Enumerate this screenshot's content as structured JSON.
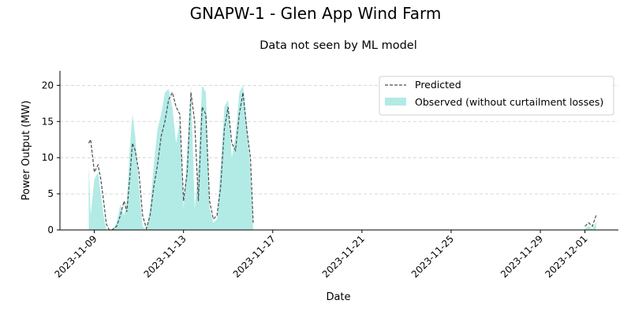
{
  "colors": {
    "observed_fill": "#b2ebe6",
    "predicted_line": "#4d4d4d",
    "grid": "#cccccc",
    "axis": "#000000"
  },
  "chart_data": {
    "type": "area",
    "title": "GNAPW-1 - Glen App Wind Farm",
    "subtitle": "Data not seen by ML model",
    "xlabel": "Date",
    "ylabel": "Power Output (MW)",
    "xlim": [
      "2023-11-07T11:00",
      "2023-12-02T12:00"
    ],
    "ylim": [
      0,
      22
    ],
    "x_ticks": [
      "2023-11-09",
      "2023-11-13",
      "2023-11-17",
      "2023-11-21",
      "2023-11-25",
      "2023-11-29",
      "2023-12-01"
    ],
    "y_ticks": [
      0,
      5,
      10,
      15,
      20
    ],
    "grid": "horizontal-dashed",
    "legend": {
      "placement": "top-right"
    },
    "series": [
      {
        "name": "Predicted",
        "style": "dashed-line",
        "segments": [
          {
            "x": [
              "2023-11-08T18:00",
              "2023-11-08T20:00",
              "2023-11-09T00:00",
              "2023-11-09T04:00",
              "2023-11-09T07:00",
              "2023-11-09T10:00",
              "2023-11-09T13:00",
              "2023-11-09T16:00",
              "2023-11-09T19:00",
              "2023-11-10T00:00",
              "2023-11-10T04:00",
              "2023-11-10T08:00",
              "2023-11-10T11:00",
              "2023-11-10T14:00",
              "2023-11-10T17:00",
              "2023-11-10T20:00",
              "2023-11-11T00:00",
              "2023-11-11T04:00",
              "2023-11-11T08:00",
              "2023-11-11T12:00",
              "2023-11-11T16:00",
              "2023-11-11T20:00",
              "2023-11-12T00:00",
              "2023-11-12T04:00",
              "2023-11-12T08:00",
              "2023-11-12T12:00",
              "2023-11-12T16:00",
              "2023-11-12T20:00",
              "2023-11-13T00:00",
              "2023-11-13T04:00",
              "2023-11-13T08:00",
              "2023-11-13T12:00",
              "2023-11-13T16:00",
              "2023-11-13T20:00",
              "2023-11-14T00:00",
              "2023-11-14T04:00",
              "2023-11-14T08:00",
              "2023-11-14T12:00",
              "2023-11-14T16:00",
              "2023-11-14T20:00",
              "2023-11-15T00:00",
              "2023-11-15T04:00",
              "2023-11-15T08:00",
              "2023-11-15T12:00",
              "2023-11-15T16:00",
              "2023-11-15T20:00",
              "2023-11-16T00:00",
              "2023-11-16T03:00"
            ],
            "y": [
              12,
              12.5,
              8,
              9,
              7,
              4,
              0.8,
              0,
              0,
              0.5,
              2,
              4,
              2.5,
              7,
              12,
              11,
              8,
              2,
              0.2,
              2,
              6,
              9,
              13,
              15,
              18,
              19,
              17,
              16,
              4,
              8,
              19,
              15,
              4,
              17,
              16,
              4,
              1.5,
              2,
              6,
              14,
              17,
              12,
              11,
              16,
              19,
              14,
              10,
              1
            ]
          },
          {
            "x": [
              "2023-12-01T00:00",
              "2023-12-01T04:00",
              "2023-12-01T08:00",
              "2023-12-01T12:00"
            ],
            "y": [
              0.5,
              1,
              0.5,
              2
            ]
          }
        ]
      },
      {
        "name": "Observed (without curtailment losses)",
        "style": "filled-area",
        "segments": [
          {
            "x": [
              "2023-11-08T18:00",
              "2023-11-08T20:00",
              "2023-11-09T00:00",
              "2023-11-09T04:00",
              "2023-11-09T07:00",
              "2023-11-09T10:00",
              "2023-11-09T13:00",
              "2023-11-09T16:00",
              "2023-11-09T19:00",
              "2023-11-10T00:00",
              "2023-11-10T04:00",
              "2023-11-10T08:00",
              "2023-11-10T11:00",
              "2023-11-10T14:00",
              "2023-11-10T17:00",
              "2023-11-10T20:00",
              "2023-11-11T00:00",
              "2023-11-11T04:00",
              "2023-11-11T08:00",
              "2023-11-11T12:00",
              "2023-11-11T16:00",
              "2023-11-11T20:00",
              "2023-11-12T00:00",
              "2023-11-12T04:00",
              "2023-11-12T08:00",
              "2023-11-12T12:00",
              "2023-11-12T16:00",
              "2023-11-12T20:00",
              "2023-11-13T00:00",
              "2023-11-13T04:00",
              "2023-11-13T08:00",
              "2023-11-13T12:00",
              "2023-11-13T16:00",
              "2023-11-13T20:00",
              "2023-11-14T00:00",
              "2023-11-14T04:00",
              "2023-11-14T08:00",
              "2023-11-14T12:00",
              "2023-11-14T16:00",
              "2023-11-14T20:00",
              "2023-11-15T00:00",
              "2023-11-15T04:00",
              "2023-11-15T08:00",
              "2023-11-15T12:00",
              "2023-11-15T16:00",
              "2023-11-15T20:00",
              "2023-11-16T00:00",
              "2023-11-16T03:00"
            ],
            "y": [
              9,
              2,
              7,
              8,
              5,
              2,
              0,
              0,
              0,
              1,
              3.5,
              2,
              4,
              11,
              16,
              13,
              6,
              0.5,
              0,
              3,
              9,
              14,
              16,
              19,
              19.5,
              17,
              12,
              15,
              3,
              11,
              20,
              3,
              9,
              20,
              19,
              3,
              1,
              1.5,
              9,
              17,
              18,
              10,
              13,
              19,
              20,
              15,
              8,
              0
            ]
          },
          {
            "x": [
              "2023-12-01T00:00",
              "2023-12-01T04:00",
              "2023-12-01T08:00",
              "2023-12-01T12:00"
            ],
            "y": [
              0.2,
              0.6,
              0.1,
              1.2
            ]
          }
        ]
      }
    ]
  }
}
